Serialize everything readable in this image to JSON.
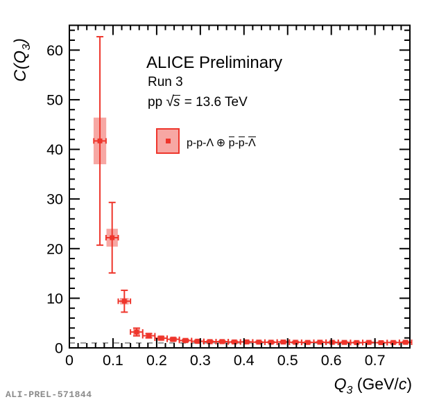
{
  "figure": {
    "annotations": {
      "experiment": "ALICE Preliminary",
      "run": "Run 3",
      "system_prefix": "pp ",
      "sqrt_symbol": "√",
      "sqrt_arg": "s",
      "energy_suffix": " = 13.6 TeV"
    },
    "legend": {
      "entry_text": "p-p-Λ ⊕ p̄-p̄-Λ̄",
      "part_main": "p-p-Λ ⊕ ",
      "part_pbar1": "p",
      "part_dash1": "-",
      "part_pbar2": "p",
      "part_dash2": "-",
      "part_lambdabar": "Λ"
    },
    "axis_titles": {
      "y_c": "C",
      "y_open": "(",
      "y_q": "Q",
      "y_sub": "3",
      "y_close": ")",
      "x_q": "Q",
      "x_sub": "3",
      "x_mid": " (GeV/",
      "x_c": "c",
      "x_close": ")"
    },
    "footer": {
      "label": "ALI-PREL-571844"
    }
  },
  "chart_data": {
    "type": "scatter",
    "title": "",
    "xlabel": "Q_3 (GeV/c)",
    "ylabel": "C(Q_3)",
    "xlim": [
      0,
      0.78
    ],
    "ylim": [
      0,
      65
    ],
    "x_major_ticks": [
      0,
      0.1,
      0.2,
      0.3,
      0.4,
      0.5,
      0.6,
      0.7
    ],
    "x_tick_labels": [
      "0",
      "0.1",
      "0.2",
      "0.3",
      "0.4",
      "0.5",
      "0.6",
      "0.7"
    ],
    "x_minor_step": 0.02,
    "y_major_ticks": [
      0,
      10,
      20,
      30,
      40,
      50,
      60
    ],
    "y_tick_labels": [
      "0",
      "10",
      "20",
      "30",
      "40",
      "50",
      "60"
    ],
    "y_minor_step": 2,
    "baseline_y": 1,
    "grid": false,
    "legend_position": "top-center-inside",
    "series": [
      {
        "name": "p-p-Λ ⊕ p̄-p̄-Λ̄",
        "x": [
          0.07,
          0.098,
          0.126,
          0.154,
          0.182,
          0.21,
          0.238,
          0.266,
          0.294,
          0.322,
          0.35,
          0.378,
          0.406,
          0.434,
          0.462,
          0.49,
          0.518,
          0.546,
          0.574,
          0.602,
          0.63,
          0.658,
          0.686,
          0.714,
          0.742,
          0.77
        ],
        "y": [
          41.7,
          22.2,
          9.4,
          3.2,
          2.45,
          1.95,
          1.72,
          1.48,
          1.32,
          1.25,
          1.26,
          1.19,
          1.2,
          1.16,
          1.14,
          1.18,
          1.13,
          1.1,
          1.14,
          1.12,
          1.1,
          1.07,
          1.1,
          1.05,
          1.08,
          1.12
        ],
        "stat_err": [
          21.0,
          7.1,
          2.2,
          0.78,
          0.42,
          0.32,
          0.27,
          0.22,
          0.18,
          0.16,
          0.14,
          0.13,
          0.12,
          0.11,
          0.11,
          0.1,
          0.1,
          0.09,
          0.09,
          0.09,
          0.08,
          0.08,
          0.08,
          0.08,
          0.08,
          0.1
        ],
        "syst_err": [
          4.7,
          1.8,
          0.66,
          0.62,
          0.62,
          0.6,
          0.58,
          0.56,
          0.55,
          0.54,
          0.53,
          0.52,
          0.52,
          0.51,
          0.51,
          0.51,
          0.5,
          0.5,
          0.5,
          0.5,
          0.5,
          0.5,
          0.5,
          0.5,
          0.5,
          0.52
        ],
        "x_err": 0.014,
        "box_halfwidth_q3": [
          0.0145,
          0.013,
          0.01,
          0.008,
          0.007,
          0.007,
          0.007,
          0.007,
          0.007,
          0.007,
          0.007,
          0.007,
          0.007,
          0.007,
          0.007,
          0.007,
          0.007,
          0.007,
          0.007,
          0.007,
          0.007,
          0.007,
          0.007,
          0.007,
          0.007,
          0.007
        ]
      }
    ],
    "colors": {
      "marker": "#ee352b",
      "syst_fill": "rgba(238,60,50,0.45)",
      "baseline": "#999999",
      "frame": "#000000",
      "text": "#000000"
    }
  }
}
